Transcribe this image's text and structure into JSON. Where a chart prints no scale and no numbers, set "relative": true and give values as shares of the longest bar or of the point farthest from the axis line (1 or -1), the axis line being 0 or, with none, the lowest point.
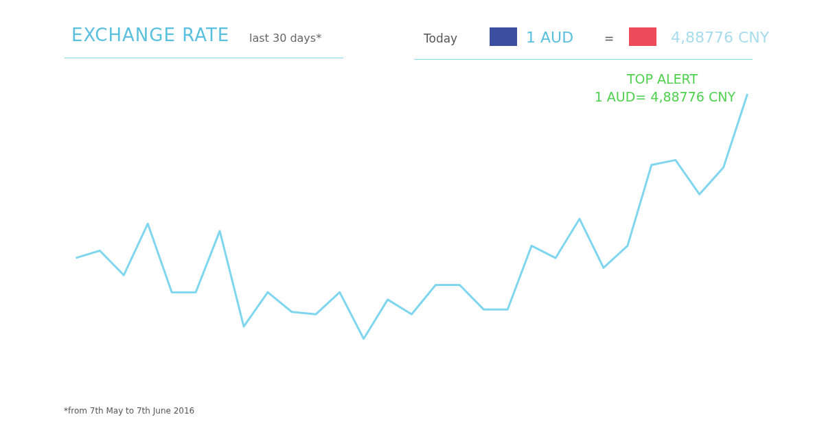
{
  "chart_data": {
    "type": "line",
    "title": "EXCHANGE RATE",
    "subtitle": "last 30 days*",
    "relative": true,
    "categories": [
      null,
      null,
      null,
      null,
      null,
      null,
      null,
      null,
      null,
      null,
      null,
      null,
      null,
      null,
      null,
      null,
      null,
      null,
      null,
      null,
      null,
      null,
      null,
      null,
      null,
      null,
      null,
      null,
      null
    ],
    "series": [
      {
        "color": "#7fd6ee",
        "values": [
          0.33,
          0.36,
          0.26,
          0.47,
          0.19,
          0.19,
          0.44,
          0.05,
          0.19,
          0.11,
          0.1,
          0.19,
          0,
          0.16,
          0.1,
          0.22,
          0.22,
          0.12,
          0.12,
          0.38,
          0.33,
          0.49,
          0.29,
          0.38,
          0.71,
          0.73,
          0.59,
          0.7,
          1
        ]
      }
    ],
    "annotations": [
      "TOP ALERT",
      "1 AUD= 4,88776 CNY",
      "Today",
      "1 AUD",
      "=",
      "4,88776 CNY",
      "*from 7th May to 7th June 2016"
    ]
  }
}
